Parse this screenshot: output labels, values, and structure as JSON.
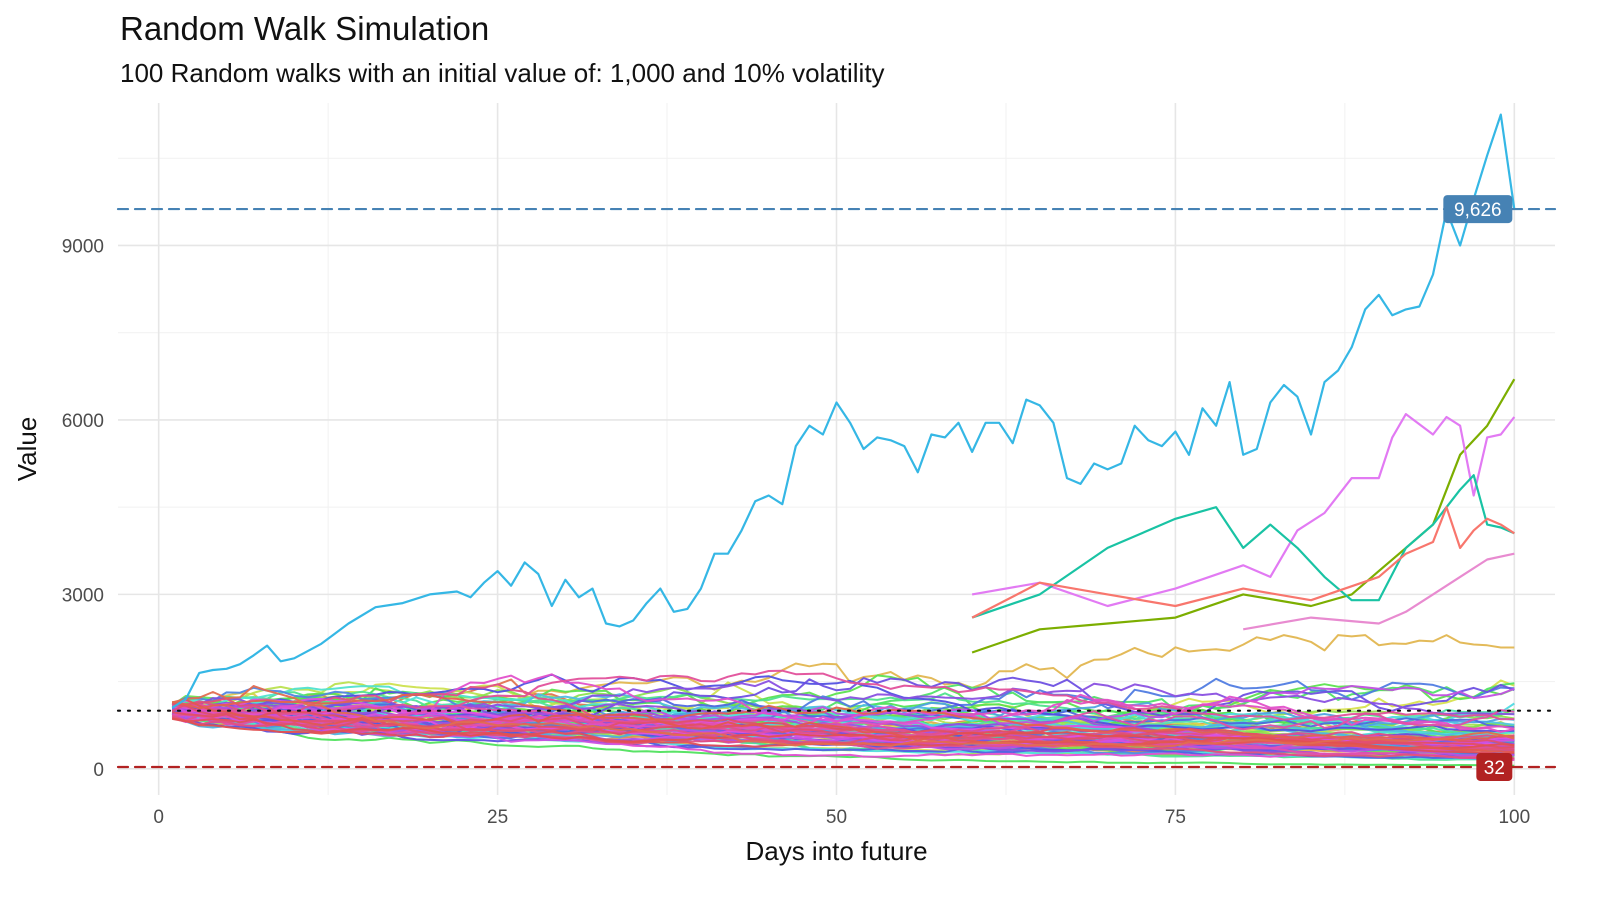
{
  "chart_data": {
    "type": "line",
    "title": "Random Walk Simulation",
    "subtitle": "100 Random walks with an initial value of: 1,000 and 10% volatility",
    "xlabel": "Days into future",
    "ylabel": "Value",
    "xlim": [
      -3,
      103
    ],
    "ylim": [
      -450,
      11450
    ],
    "x_ticks": [
      0,
      25,
      50,
      75,
      100
    ],
    "y_ticks": [
      0,
      3000,
      6000,
      9000
    ],
    "grid": true,
    "legend": "none",
    "n_series": 100,
    "initial_value": 1000,
    "reference_lines": [
      {
        "name": "max",
        "value": 9626,
        "style": "dashed",
        "color": "#4682b4",
        "label": "9,626"
      },
      {
        "name": "initial",
        "value": 1000,
        "style": "dotted",
        "color": "#111111"
      },
      {
        "name": "min",
        "value": 32,
        "style": "dashed",
        "color": "#b22222",
        "label": "32"
      }
    ],
    "highlighted_series": [
      {
        "color": "#35b7e5",
        "x": [
          1,
          2,
          3,
          4,
          5,
          6,
          7,
          8,
          9,
          10,
          12,
          14,
          16,
          18,
          20,
          22,
          23,
          24,
          25,
          26,
          27,
          28,
          29,
          30,
          31,
          32,
          33,
          34,
          35,
          36,
          37,
          38,
          39,
          40,
          41,
          42,
          43,
          44,
          45,
          46,
          47,
          48,
          49,
          50,
          51,
          52,
          53,
          54,
          55,
          56,
          57,
          58,
          59,
          60,
          61,
          62,
          63,
          64,
          65,
          66,
          67,
          68,
          69,
          70,
          71,
          72,
          73,
          74,
          75,
          76,
          77,
          78,
          79,
          80,
          81,
          82,
          83,
          84,
          85,
          86,
          87,
          88,
          89,
          90,
          91,
          92,
          93,
          94,
          95,
          96,
          97,
          98,
          99,
          100
        ],
        "values": [
          1050,
          1200,
          1650,
          1700,
          1720,
          1800,
          1950,
          2120,
          1850,
          1900,
          2150,
          2500,
          2780,
          2850,
          3000,
          3050,
          2950,
          3200,
          3400,
          3150,
          3550,
          3350,
          2800,
          3250,
          2950,
          3100,
          2500,
          2450,
          2550,
          2850,
          3100,
          2700,
          2750,
          3100,
          3700,
          3700,
          4100,
          4600,
          4700,
          4550,
          5550,
          5900,
          5750,
          6300,
          5950,
          5500,
          5700,
          5650,
          5550,
          5100,
          5750,
          5700,
          5950,
          5450,
          5950,
          5950,
          5600,
          6350,
          6250,
          5950,
          5000,
          4900,
          5250,
          5150,
          5250,
          5900,
          5650,
          5550,
          5800,
          5400,
          6200,
          5900,
          6650,
          5400,
          5500,
          6300,
          6600,
          6400,
          5750,
          6650,
          6850,
          7250,
          7900,
          8150,
          7800,
          7900,
          7950,
          8500,
          9600,
          9000,
          9800,
          10550,
          11250,
          9626
        ]
      },
      {
        "color": "#7cae00",
        "x": [
          60,
          65,
          70,
          75,
          80,
          85,
          88,
          90,
          92,
          94,
          96,
          98,
          100
        ],
        "values": [
          2000,
          2400,
          2500,
          2600,
          3000,
          2800,
          3000,
          3400,
          3800,
          4200,
          5400,
          5900,
          6700
        ]
      },
      {
        "color": "#e27af3",
        "x": [
          60,
          65,
          70,
          75,
          80,
          82,
          84,
          86,
          88,
          90,
          91,
          92,
          94,
          95,
          96,
          97,
          98,
          99,
          100
        ],
        "values": [
          3000,
          3200,
          2800,
          3100,
          3500,
          3300,
          4100,
          4400,
          5000,
          5000,
          5700,
          6100,
          5750,
          6050,
          5900,
          4700,
          5700,
          5750,
          6050
        ]
      },
      {
        "color": "#19c3a4",
        "x": [
          60,
          65,
          70,
          75,
          78,
          80,
          82,
          84,
          86,
          88,
          90,
          92,
          94,
          96,
          97,
          98,
          99,
          100
        ],
        "values": [
          2600,
          3000,
          3800,
          4300,
          4500,
          3800,
          4200,
          3800,
          3300,
          2900,
          2900,
          3800,
          4200,
          4800,
          5050,
          4200,
          4150,
          4050
        ]
      },
      {
        "color": "#f8766d",
        "x": [
          60,
          65,
          70,
          75,
          80,
          85,
          90,
          92,
          94,
          95,
          96,
          97,
          98,
          99,
          100
        ],
        "values": [
          2600,
          3200,
          3000,
          2800,
          3100,
          2900,
          3300,
          3700,
          3900,
          4500,
          3800,
          4100,
          4300,
          4200,
          4050
        ]
      },
      {
        "color": "#e88bd0",
        "x": [
          80,
          85,
          90,
          92,
          94,
          96,
          98,
          100
        ],
        "values": [
          2400,
          2600,
          2500,
          2700,
          3000,
          3300,
          3600,
          3700
        ]
      }
    ]
  }
}
